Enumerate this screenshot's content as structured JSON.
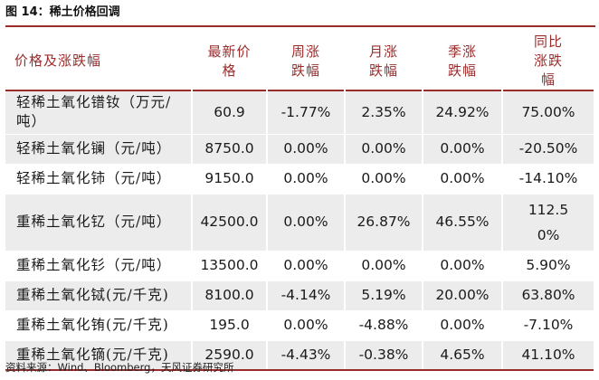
{
  "figure": {
    "title": "图 14：稀土价格回调",
    "source": "资料来源：Wind、Bloomberg，天风证券研究所"
  },
  "table": {
    "headers": [
      "价格及涨跌幅",
      "最新价格",
      "周涨跌幅",
      "月涨跌幅",
      "季涨跌幅",
      "同比涨跌幅"
    ],
    "rows": [
      {
        "name": "轻稀土氧化镨钕（万元/吨）",
        "latest": "60.9",
        "week": "-1.77%",
        "month": "2.35%",
        "quarter": "24.92%",
        "yoy": "75.00%"
      },
      {
        "name": "轻稀土氧化镧（元/吨）",
        "latest": "8750.0",
        "week": "0.00%",
        "month": "0.00%",
        "quarter": "0.00%",
        "yoy": "-20.50%"
      },
      {
        "name": "轻稀土氧化铈（元/吨）",
        "latest": "9150.0",
        "week": "0.00%",
        "month": "0.00%",
        "quarter": "0.00%",
        "yoy": "-14.10%"
      },
      {
        "name": "重稀土氧化钇（元/吨）",
        "latest": "42500.0",
        "week": "0.00%",
        "month": "26.87%",
        "quarter": "46.55%",
        "yoy": "112.50%"
      },
      {
        "name": "重稀土氧化钐（元/吨）",
        "latest": "13500.0",
        "week": "0.00%",
        "month": "0.00%",
        "quarter": "0.00%",
        "yoy": "5.90%"
      },
      {
        "name": "重稀土氧化铽(元/千克)",
        "latest": "8100.0",
        "week": "-4.14%",
        "month": "5.19%",
        "quarter": "20.00%",
        "yoy": "63.80%"
      },
      {
        "name": "重稀土氧化铕(元/千克)",
        "latest": "195.0",
        "week": "0.00%",
        "month": "-4.88%",
        "quarter": "0.00%",
        "yoy": "-7.10%"
      },
      {
        "name": "重稀土氧化镝(元/千克)",
        "latest": "2590.0",
        "week": "-4.43%",
        "month": "-0.38%",
        "quarter": "4.65%",
        "yoy": "41.10%"
      }
    ]
  },
  "colors": {
    "accent": "#9b2c2c",
    "row_shade": "#ececec",
    "background": "#ffffff"
  }
}
